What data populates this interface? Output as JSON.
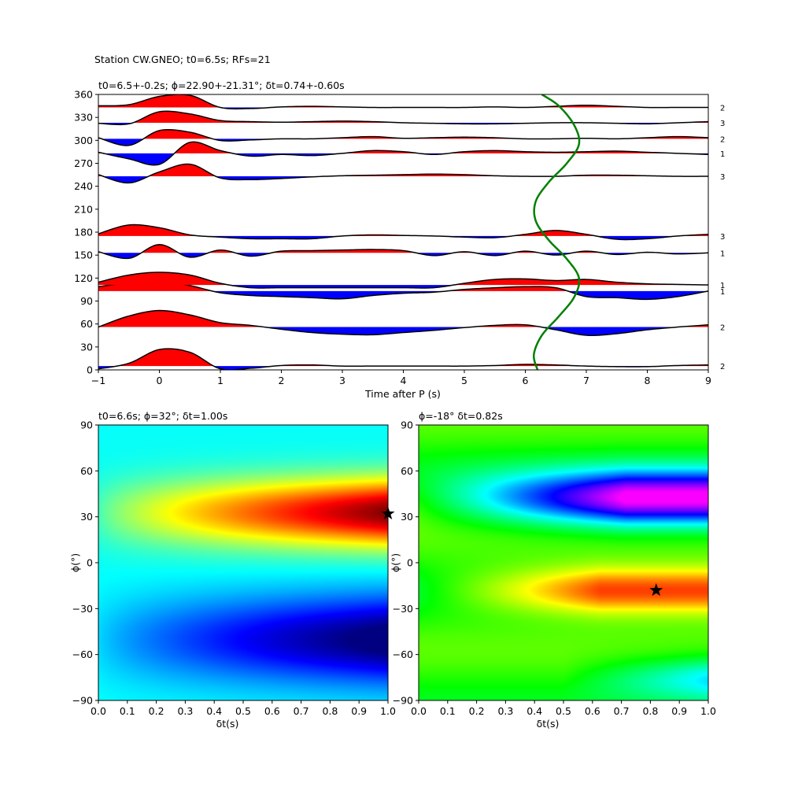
{
  "figure_title": "Station CW.GNEO; t0=6.5s; RFs=21",
  "colors": {
    "positive_fill": "#ff0000",
    "negative_fill": "#0000ff",
    "trace_line": "#000000",
    "curve": "#008000",
    "star": "#000000"
  },
  "chart_data": [
    {
      "type": "line",
      "title": "t0=6.5+-0.2s; ϕ=22.90+-21.31°; δt=0.74+-0.60s",
      "xlabel": "Time after P (s)",
      "ylabel": "",
      "xlim": [
        -1,
        9
      ],
      "ylim": [
        0,
        360
      ],
      "xticks": [
        "−1",
        "0",
        "1",
        "2",
        "3",
        "4",
        "5",
        "6",
        "7",
        "8",
        "9"
      ],
      "yticks": [
        "0",
        "30",
        "60",
        "90",
        "120",
        "150",
        "180",
        "210",
        "240",
        "270",
        "300",
        "330",
        "360"
      ],
      "wiggle_x": [
        -1,
        -0.5,
        0,
        0.5,
        1,
        1.5,
        2,
        2.5,
        3,
        3.5,
        4,
        4.5,
        5,
        5.5,
        6,
        6.5,
        7,
        7.5,
        8,
        8.5,
        9
      ],
      "traces": [
        {
          "baz": 5,
          "count": "2",
          "values": [
            -5,
            5,
            30,
            25,
            -5,
            -4,
            1,
            2,
            0,
            0,
            0,
            0,
            0,
            1,
            3,
            2,
            0,
            -1,
            -1,
            1,
            2
          ]
        },
        {
          "baz": 56,
          "count": "2",
          "values": [
            0,
            20,
            30,
            22,
            8,
            3,
            -4,
            -10,
            -13,
            -14,
            -10,
            -6,
            -1,
            3,
            4,
            -5,
            -15,
            -12,
            -5,
            0,
            4
          ]
        },
        {
          "baz": 103,
          "count": "1",
          "values": [
            8,
            15,
            18,
            10,
            -3,
            -8,
            -10,
            -12,
            -14,
            -8,
            -4,
            -2,
            3,
            6,
            8,
            6,
            -10,
            -12,
            -15,
            -10,
            0
          ]
        },
        {
          "baz": 111,
          "count": "1",
          "values": [
            5,
            18,
            23,
            18,
            3,
            -5,
            -5,
            -5,
            -5,
            -5,
            -5,
            -5,
            3,
            10,
            11,
            8,
            10,
            5,
            2,
            1,
            0
          ]
        },
        {
          "baz": 153,
          "count": "1",
          "values": [
            2,
            -10,
            15,
            -8,
            5,
            -6,
            3,
            4,
            5,
            6,
            4,
            -5,
            2,
            -5,
            3,
            -4,
            3,
            -3,
            1,
            -2,
            0
          ]
        },
        {
          "baz": 175,
          "count": "3",
          "values": [
            4,
            20,
            15,
            2,
            -2,
            -5,
            -5,
            -5,
            0,
            2,
            1,
            0,
            -2,
            -3,
            3,
            10,
            3,
            -6,
            -5,
            0,
            3
          ]
        },
        {
          "baz": 253,
          "count": "3",
          "values": [
            3,
            -12,
            8,
            22,
            -3,
            -6,
            -4,
            -1,
            1,
            2,
            3,
            4,
            3,
            1,
            0,
            0,
            2,
            2,
            1,
            0,
            0
          ]
        },
        {
          "baz": 283,
          "count": "1",
          "values": [
            2,
            -10,
            -20,
            20,
            5,
            -5,
            -2,
            -4,
            0,
            5,
            3,
            -2,
            3,
            5,
            3,
            2,
            3,
            4,
            2,
            0,
            -2
          ]
        },
        {
          "baz": 302,
          "count": "2",
          "values": [
            2,
            -12,
            15,
            12,
            -3,
            -2,
            0,
            0,
            2,
            4,
            1,
            2,
            3,
            2,
            0,
            0,
            1,
            0,
            2,
            4,
            2
          ]
        },
        {
          "baz": 323,
          "count": "3",
          "values": [
            -1,
            -2,
            20,
            16,
            4,
            2,
            1,
            2,
            3,
            2,
            0,
            -1,
            -2,
            -2,
            -1,
            0,
            0,
            -1,
            -2,
            0,
            2
          ]
        },
        {
          "baz": 343,
          "count": "2",
          "values": [
            3,
            5,
            20,
            22,
            0,
            -2,
            1,
            2,
            1,
            0,
            0,
            0,
            0,
            1,
            0,
            2,
            4,
            2,
            0,
            0,
            0
          ]
        }
      ],
      "curve": {
        "color": "green",
        "x": [
          6.2,
          6.14,
          6.27,
          6.55,
          6.8,
          6.88,
          6.68,
          6.38,
          6.17,
          6.17,
          6.38,
          6.68,
          6.88,
          6.8,
          6.55,
          6.27
        ],
        "y": [
          0,
          20,
          45,
          70,
          95,
          120,
          145,
          170,
          195,
          220,
          245,
          270,
          295,
          320,
          345,
          360
        ]
      }
    },
    {
      "type": "heatmap",
      "title": "t0=6.6s; ϕ=32°; δt=1.00s",
      "xlabel": "δt(s)",
      "ylabel": "ϕ(°)",
      "xlim": [
        0.0,
        1.0
      ],
      "ylim": [
        -90,
        90
      ],
      "xticks": [
        "0.0",
        "0.1",
        "0.2",
        "0.3",
        "0.4",
        "0.5",
        "0.6",
        "0.7",
        "0.8",
        "0.9",
        "1.0"
      ],
      "yticks": [
        "−90",
        "−60",
        "−30",
        "0",
        "30",
        "60",
        "90"
      ],
      "colormap": "jet",
      "star": {
        "dt": 1.0,
        "phi": 32
      }
    },
    {
      "type": "heatmap",
      "title": "ϕ=-18° δt=0.82s",
      "xlabel": "δt(s)",
      "ylabel": "ϕ(°)",
      "xlim": [
        0.0,
        1.0
      ],
      "ylim": [
        -90,
        90
      ],
      "xticks": [
        "0.0",
        "0.1",
        "0.2",
        "0.3",
        "0.4",
        "0.5",
        "0.6",
        "0.7",
        "0.8",
        "0.9",
        "1.0"
      ],
      "yticks": [
        "−90",
        "−60",
        "−30",
        "0",
        "30",
        "60",
        "90"
      ],
      "colormap": "gist_rainbow",
      "star": {
        "dt": 0.82,
        "phi": -18
      }
    }
  ]
}
